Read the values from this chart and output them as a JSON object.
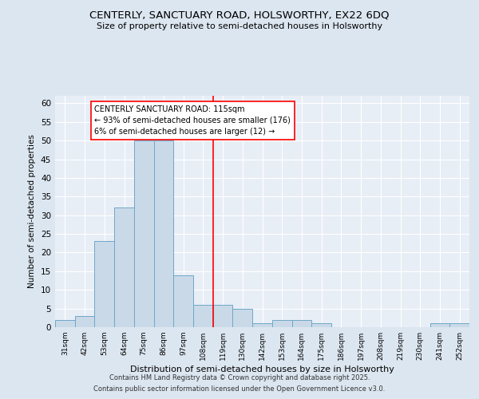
{
  "title": "CENTERLY, SANCTUARY ROAD, HOLSWORTHY, EX22 6DQ",
  "subtitle": "Size of property relative to semi-detached houses in Holsworthy",
  "xlabel": "Distribution of semi-detached houses by size in Holsworthy",
  "ylabel": "Number of semi-detached properties",
  "categories": [
    "31sqm",
    "42sqm",
    "53sqm",
    "64sqm",
    "75sqm",
    "86sqm",
    "97sqm",
    "108sqm",
    "119sqm",
    "130sqm",
    "142sqm",
    "153sqm",
    "164sqm",
    "175sqm",
    "186sqm",
    "197sqm",
    "208sqm",
    "219sqm",
    "230sqm",
    "241sqm",
    "252sqm"
  ],
  "values": [
    2,
    3,
    23,
    32,
    50,
    50,
    14,
    6,
    6,
    5,
    1,
    2,
    2,
    1,
    0,
    0,
    0,
    0,
    0,
    1,
    1
  ],
  "bar_color": "#c9d9e8",
  "bar_edge_color": "#6fa8c8",
  "annotation_text": "CENTERLY SANCTUARY ROAD: 115sqm\n← 93% of semi-detached houses are smaller (176)\n6% of semi-detached houses are larger (12) →",
  "ylim": [
    0,
    62
  ],
  "yticks": [
    0,
    5,
    10,
    15,
    20,
    25,
    30,
    35,
    40,
    45,
    50,
    55,
    60
  ],
  "background_color": "#dce6f0",
  "plot_background": "#e8eef6",
  "grid_color": "#ffffff",
  "footer_line1": "Contains HM Land Registry data © Crown copyright and database right 2025.",
  "footer_line2": "Contains public sector information licensed under the Open Government Licence v3.0."
}
